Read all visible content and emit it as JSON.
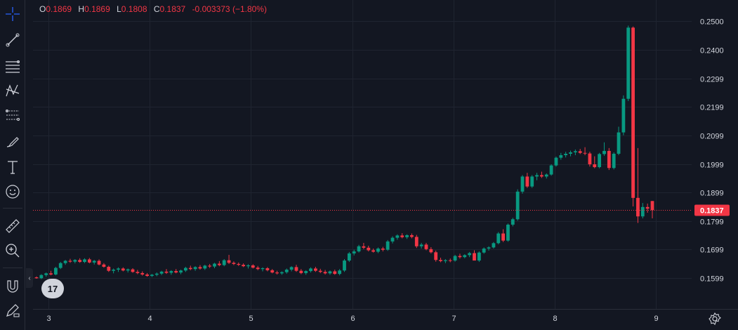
{
  "ohlc": {
    "o_label": "O",
    "o_value": "0.1869",
    "h_label": "H",
    "h_value": "0.1869",
    "l_label": "L",
    "l_value": "0.1808",
    "c_label": "C",
    "c_value": "0.1837",
    "change": "-0.003373 (−1.80%)"
  },
  "toolbar": {
    "icons": [
      "crosshair-icon",
      "trend-line-icon",
      "horizontal-lines-icon",
      "pattern-icon",
      "fib-icon",
      "brush-icon",
      "text-icon",
      "emoji-icon",
      "ruler-icon",
      "zoom-icon",
      "magnet-icon",
      "lock-pencil-icon"
    ]
  },
  "colors": {
    "up": "#089981",
    "down": "#f23645",
    "bg": "#131722",
    "grid": "#1f2430",
    "text": "#d1d4dc"
  },
  "logo_text": "17",
  "chart_data": {
    "type": "candlestick",
    "x_ticks": [
      "3",
      "4",
      "5",
      "6",
      "7",
      "8",
      "9"
    ],
    "y_ticks": [
      "0.2500",
      "0.2400",
      "0.2299",
      "0.2199",
      "0.2099",
      "0.1999",
      "0.1899",
      "0.1799",
      "0.1699",
      "0.1599"
    ],
    "ylim": [
      0.149,
      0.2575
    ],
    "last_price": "0.1837",
    "candles": [
      [
        0.1601,
        0.1604,
        0.1596,
        0.1598
      ],
      [
        0.1598,
        0.1612,
        0.1595,
        0.1609
      ],
      [
        0.1609,
        0.1618,
        0.1603,
        0.1615
      ],
      [
        0.1615,
        0.1624,
        0.1608,
        0.1611
      ],
      [
        0.1611,
        0.1638,
        0.1608,
        0.1634
      ],
      [
        0.1634,
        0.1655,
        0.163,
        0.1651
      ],
      [
        0.1651,
        0.1662,
        0.1645,
        0.1659
      ],
      [
        0.1659,
        0.1666,
        0.1652,
        0.1656
      ],
      [
        0.1656,
        0.1665,
        0.165,
        0.1662
      ],
      [
        0.1662,
        0.1668,
        0.1652,
        0.1655
      ],
      [
        0.1655,
        0.1668,
        0.1651,
        0.1664
      ],
      [
        0.1664,
        0.1669,
        0.165,
        0.1653
      ],
      [
        0.1653,
        0.1662,
        0.1646,
        0.1659
      ],
      [
        0.1659,
        0.1664,
        0.1643,
        0.1646
      ],
      [
        0.1646,
        0.1651,
        0.1635,
        0.1638
      ],
      [
        0.1638,
        0.1642,
        0.162,
        0.1624
      ],
      [
        0.1624,
        0.1632,
        0.1615,
        0.1628
      ],
      [
        0.1628,
        0.1636,
        0.162,
        0.1632
      ],
      [
        0.1632,
        0.1636,
        0.1622,
        0.1625
      ],
      [
        0.1625,
        0.1632,
        0.1618,
        0.1629
      ],
      [
        0.1629,
        0.1633,
        0.1617,
        0.162
      ],
      [
        0.162,
        0.1627,
        0.1612,
        0.1616
      ],
      [
        0.1616,
        0.1622,
        0.1607,
        0.1611
      ],
      [
        0.1611,
        0.1616,
        0.1603,
        0.1606
      ],
      [
        0.1606,
        0.1613,
        0.1602,
        0.161
      ],
      [
        0.161,
        0.1618,
        0.1605,
        0.1614
      ],
      [
        0.1614,
        0.1624,
        0.1609,
        0.1621
      ],
      [
        0.1621,
        0.163,
        0.1613,
        0.1617
      ],
      [
        0.1617,
        0.1626,
        0.161,
        0.1623
      ],
      [
        0.1623,
        0.163,
        0.1615,
        0.1618
      ],
      [
        0.1618,
        0.1628,
        0.1612,
        0.1625
      ],
      [
        0.1625,
        0.1638,
        0.162,
        0.1634
      ],
      [
        0.1634,
        0.1642,
        0.1626,
        0.163
      ],
      [
        0.163,
        0.164,
        0.1624,
        0.1637
      ],
      [
        0.1637,
        0.1644,
        0.1628,
        0.1632
      ],
      [
        0.1632,
        0.1645,
        0.1627,
        0.1642
      ],
      [
        0.1642,
        0.1648,
        0.1634,
        0.1639
      ],
      [
        0.1639,
        0.1652,
        0.1633,
        0.1649
      ],
      [
        0.1649,
        0.1658,
        0.164,
        0.1644
      ],
      [
        0.1644,
        0.1665,
        0.164,
        0.1661
      ],
      [
        0.1661,
        0.168,
        0.1648,
        0.1652
      ],
      [
        0.1652,
        0.1657,
        0.1644,
        0.1648
      ],
      [
        0.1648,
        0.1653,
        0.1641,
        0.1645
      ],
      [
        0.1645,
        0.165,
        0.1637,
        0.164
      ],
      [
        0.164,
        0.1647,
        0.1632,
        0.1643
      ],
      [
        0.1643,
        0.1647,
        0.1632,
        0.1635
      ],
      [
        0.1635,
        0.1641,
        0.1626,
        0.163
      ],
      [
        0.163,
        0.1636,
        0.1622,
        0.1633
      ],
      [
        0.1633,
        0.1637,
        0.1622,
        0.1626
      ],
      [
        0.1626,
        0.163,
        0.1615,
        0.1618
      ],
      [
        0.1618,
        0.1624,
        0.1611,
        0.1615
      ],
      [
        0.1615,
        0.1622,
        0.161,
        0.1619
      ],
      [
        0.1619,
        0.1632,
        0.1614,
        0.1628
      ],
      [
        0.1628,
        0.164,
        0.1622,
        0.1637
      ],
      [
        0.1637,
        0.1645,
        0.162,
        0.1624
      ],
      [
        0.1624,
        0.163,
        0.1612,
        0.1616
      ],
      [
        0.1616,
        0.1626,
        0.161,
        0.1623
      ],
      [
        0.1623,
        0.1636,
        0.1618,
        0.1632
      ],
      [
        0.1632,
        0.1638,
        0.162,
        0.1624
      ],
      [
        0.1624,
        0.1631,
        0.1616,
        0.162
      ],
      [
        0.162,
        0.1627,
        0.1611,
        0.1615
      ],
      [
        0.1615,
        0.1625,
        0.161,
        0.1622
      ],
      [
        0.1622,
        0.1628,
        0.161,
        0.1613
      ],
      [
        0.1613,
        0.163,
        0.1608,
        0.1625
      ],
      [
        0.1625,
        0.1665,
        0.162,
        0.166
      ],
      [
        0.166,
        0.169,
        0.1655,
        0.1685
      ],
      [
        0.1685,
        0.1698,
        0.1678,
        0.1692
      ],
      [
        0.1692,
        0.1715,
        0.1688,
        0.171
      ],
      [
        0.171,
        0.1722,
        0.17,
        0.1705
      ],
      [
        0.1705,
        0.1712,
        0.1692,
        0.1696
      ],
      [
        0.1696,
        0.1702,
        0.1688,
        0.1691
      ],
      [
        0.1691,
        0.1706,
        0.1686,
        0.1702
      ],
      [
        0.1702,
        0.1708,
        0.1692,
        0.1698
      ],
      [
        0.1698,
        0.1732,
        0.1694,
        0.1727
      ],
      [
        0.1727,
        0.1745,
        0.172,
        0.174
      ],
      [
        0.174,
        0.1752,
        0.1733,
        0.1748
      ],
      [
        0.1748,
        0.1756,
        0.1738,
        0.1742
      ],
      [
        0.1742,
        0.1752,
        0.1736,
        0.1749
      ],
      [
        0.1749,
        0.1755,
        0.1738,
        0.1743
      ],
      [
        0.1743,
        0.175,
        0.1704,
        0.171
      ],
      [
        0.171,
        0.1722,
        0.1702,
        0.1716
      ],
      [
        0.1716,
        0.1722,
        0.1696,
        0.17
      ],
      [
        0.17,
        0.1707,
        0.1685,
        0.1689
      ],
      [
        0.1689,
        0.1695,
        0.1656,
        0.1662
      ],
      [
        0.1662,
        0.167,
        0.1654,
        0.1658
      ],
      [
        0.1658,
        0.1665,
        0.1651,
        0.1661
      ],
      [
        0.1661,
        0.1667,
        0.1654,
        0.166
      ],
      [
        0.166,
        0.168,
        0.1656,
        0.1676
      ],
      [
        0.1676,
        0.1684,
        0.1667,
        0.1672
      ],
      [
        0.1672,
        0.1682,
        0.1668,
        0.1679
      ],
      [
        0.1679,
        0.169,
        0.1672,
        0.1686
      ],
      [
        0.1686,
        0.1696,
        0.167,
        0.166
      ],
      [
        0.166,
        0.1692,
        0.1655,
        0.1688
      ],
      [
        0.1688,
        0.1706,
        0.1684,
        0.1702
      ],
      [
        0.1702,
        0.171,
        0.1695,
        0.1706
      ],
      [
        0.1706,
        0.1725,
        0.1702,
        0.1721
      ],
      [
        0.1721,
        0.176,
        0.1717,
        0.1755
      ],
      [
        0.1755,
        0.177,
        0.1725,
        0.173
      ],
      [
        0.173,
        0.179,
        0.1726,
        0.1786
      ],
      [
        0.1786,
        0.181,
        0.178,
        0.1805
      ],
      [
        0.1805,
        0.191,
        0.18,
        0.1902
      ],
      [
        0.1902,
        0.196,
        0.1895,
        0.1955
      ],
      [
        0.1955,
        0.1968,
        0.1915,
        0.192
      ],
      [
        0.192,
        0.196,
        0.1915,
        0.1955
      ],
      [
        0.1955,
        0.1968,
        0.1942,
        0.196
      ],
      [
        0.196,
        0.1972,
        0.195,
        0.1955
      ],
      [
        0.1955,
        0.1966,
        0.1948,
        0.1962
      ],
      [
        0.1962,
        0.1998,
        0.1958,
        0.1994
      ],
      [
        0.1994,
        0.2025,
        0.199,
        0.2021
      ],
      [
        0.2021,
        0.2038,
        0.2014,
        0.203
      ],
      [
        0.203,
        0.2042,
        0.2022,
        0.2035
      ],
      [
        0.2035,
        0.2046,
        0.2026,
        0.204
      ],
      [
        0.204,
        0.205,
        0.203,
        0.2044
      ],
      [
        0.2044,
        0.2052,
        0.2034,
        0.2038
      ],
      [
        0.2038,
        0.2058,
        0.203,
        0.2036
      ],
      [
        0.2036,
        0.2042,
        0.199,
        0.1998
      ],
      [
        0.1998,
        0.2026,
        0.1984,
        0.1988
      ],
      [
        0.1988,
        0.2038,
        0.1984,
        0.2034
      ],
      [
        0.2034,
        0.2075,
        0.2028,
        0.2045
      ],
      [
        0.2045,
        0.2055,
        0.1978,
        0.1985
      ],
      [
        0.1985,
        0.204,
        0.198,
        0.2035
      ],
      [
        0.2035,
        0.213,
        0.203,
        0.211
      ],
      [
        0.211,
        0.224,
        0.21,
        0.2228
      ],
      [
        0.2228,
        0.2485,
        0.222,
        0.2478
      ],
      [
        0.2478,
        0.2482,
        0.185,
        0.188
      ],
      [
        0.188,
        0.2055,
        0.1792,
        0.1815
      ],
      [
        0.1815,
        0.1862,
        0.1808,
        0.1848
      ],
      [
        0.1848,
        0.186,
        0.1828,
        0.1842
      ],
      [
        0.1869,
        0.1869,
        0.1808,
        0.1837
      ]
    ]
  }
}
